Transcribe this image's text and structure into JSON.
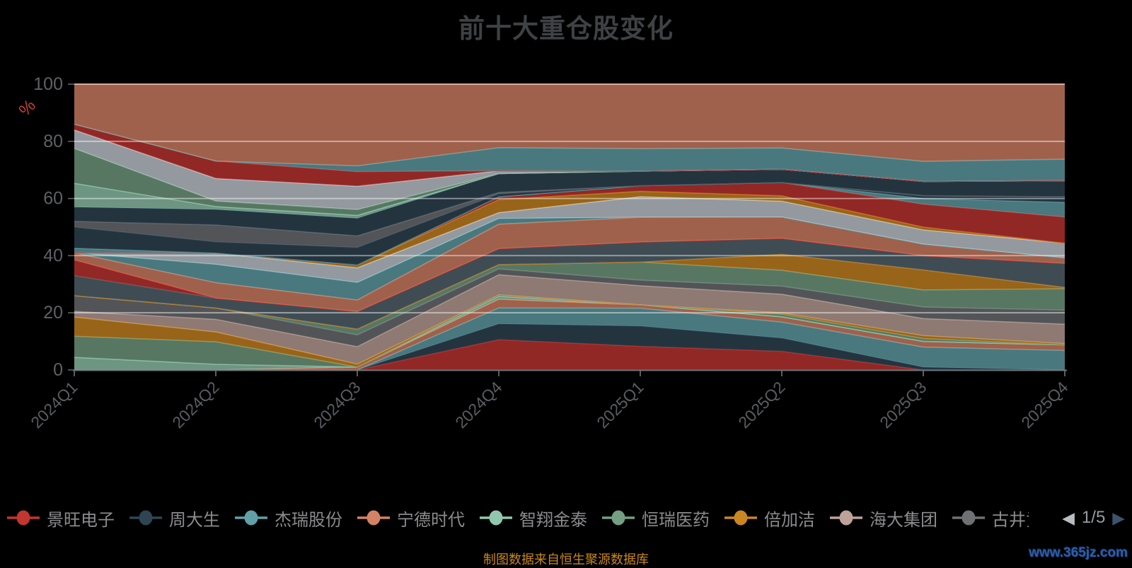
{
  "header": {
    "title": "前十大重仓股变化"
  },
  "footer": {
    "source_note": "制图数据来自恒生聚源数据库",
    "watermark": "www.365jz.com",
    "source_note_color": "#c9871c",
    "watermark_color": "#2a5fae"
  },
  "legend": {
    "items": [
      {
        "label": "景旺电子",
        "color": "#c23531"
      },
      {
        "label": "周大生",
        "color": "#2f4554"
      },
      {
        "label": "杰瑞股份",
        "color": "#61a0a8"
      },
      {
        "label": "宁德时代",
        "color": "#d48265"
      },
      {
        "label": "智翔金泰",
        "color": "#91c7ae"
      },
      {
        "label": "恒瑞医药",
        "color": "#749f83"
      },
      {
        "label": "倍加洁",
        "color": "#ca8622"
      },
      {
        "label": "海大集团",
        "color": "#bda29a"
      },
      {
        "label": "古井贡",
        "color": "#6e7074",
        "truncated": true
      }
    ],
    "pager": {
      "prev": "◀",
      "text": "1/5",
      "next": "▶"
    }
  },
  "chart_data": {
    "type": "area",
    "stacked": true,
    "normalized_percent": true,
    "title": "前十大重仓股变化",
    "xlabel": "",
    "ylabel": "%",
    "ylabel_color": "#c84038",
    "ylim": [
      0,
      100
    ],
    "yticks": [
      0,
      20,
      40,
      60,
      80,
      100
    ],
    "grid_on": true,
    "gridline_color": "rgba(255,255,255,0.5)",
    "area_opacity": 0.75,
    "legend_position": "bottom",
    "legend_page": "1/5",
    "palette": [
      "#c23531",
      "#2f4554",
      "#61a0a8",
      "#d48265",
      "#91c7ae",
      "#749f83",
      "#ca8622",
      "#bda29a",
      "#6e7074",
      "#546570",
      "#c4ccd3"
    ],
    "categories": [
      "2024Q1",
      "2024Q2",
      "2024Q3",
      "2024Q4",
      "2025Q1",
      "2025Q2",
      "2025Q3",
      "2025Q4"
    ],
    "series": [
      {
        "name": "景旺电子",
        "color": "#c23531",
        "values": [
          0,
          0,
          0,
          10.5,
          8.6,
          7,
          0,
          0
        ]
      },
      {
        "name": "周大生",
        "color": "#2f4554",
        "values": [
          0,
          0,
          0,
          5.5,
          7.4,
          5,
          1,
          0
        ]
      },
      {
        "name": "杰瑞股份",
        "color": "#61a0a8",
        "values": [
          0,
          0,
          0,
          5.5,
          6.5,
          6,
          7,
          7
        ]
      },
      {
        "name": "宁德时代",
        "color": "#d48265",
        "values": [
          0,
          0,
          1,
          3,
          1.2,
          2,
          2,
          2
        ]
      },
      {
        "name": "智翔金泰",
        "color": "#91c7ae",
        "values": [
          4.4,
          2,
          0,
          1,
          0,
          0,
          0,
          0
        ]
      },
      {
        "name": "恒瑞医药",
        "color": "#749f83",
        "values": [
          7.4,
          8,
          0,
          0.5,
          0,
          1,
          1,
          0
        ]
      },
      {
        "name": "倍加洁",
        "color": "#ca8622",
        "values": [
          6.7,
          3.5,
          1,
          0,
          0,
          0.5,
          1,
          0.5
        ]
      },
      {
        "name": "海大集团",
        "color": "#bda29a",
        "values": [
          2,
          4.5,
          6,
          7,
          7,
          7,
          6,
          7
        ]
      },
      {
        "name": "古井贡",
        "color": "#6e7074",
        "values": [
          5.5,
          4,
          4,
          2,
          2,
          3,
          4,
          5
        ]
      },
      {
        "name": "",
        "color": "#749f83",
        "values": [
          0,
          0,
          2,
          1.5,
          6.6,
          6,
          6,
          7.7
        ]
      },
      {
        "name": "",
        "color": "#ca8622",
        "values": [
          0,
          0,
          0,
          0,
          0,
          6,
          7,
          0.5
        ]
      },
      {
        "name": "",
        "color": "#546570",
        "values": [
          7,
          3.5,
          6,
          5.5,
          7.3,
          6,
          5,
          8.6
        ]
      },
      {
        "name": "",
        "color": "#c23531",
        "values": [
          5.5,
          0,
          0,
          0,
          0,
          0,
          0,
          0
        ]
      },
      {
        "name": "",
        "color": "#d48265",
        "values": [
          2.5,
          5.5,
          4,
          8.5,
          9,
          8,
          4,
          2
        ]
      },
      {
        "name": "",
        "color": "#61a0a8",
        "values": [
          0,
          6.5,
          6,
          2,
          0,
          0,
          0,
          0
        ]
      },
      {
        "name": "",
        "color": "#c4ccd3",
        "values": [
          0,
          4,
          5,
          2,
          7.5,
          6,
          5,
          5.3
        ]
      },
      {
        "name": "",
        "color": "#ca8622",
        "values": [
          0,
          0,
          1,
          4.5,
          2,
          2,
          1,
          0
        ]
      },
      {
        "name": "",
        "color": "#c23531",
        "values": [
          0,
          0,
          0,
          1,
          2,
          5,
          8,
          9.4
        ]
      },
      {
        "name": "",
        "color": "#61a0a8",
        "values": [
          1.6,
          0,
          0,
          0,
          0,
          0,
          2,
          5.3
        ]
      },
      {
        "name": "",
        "color": "#2f4554",
        "values": [
          7.4,
          4,
          6,
          1,
          0,
          0,
          1,
          2
        ]
      },
      {
        "name": "",
        "color": "#6e7074",
        "values": [
          2,
          6,
          4,
          0.5,
          0,
          0,
          0,
          0
        ]
      },
      {
        "name": "",
        "color": "#2f4554",
        "values": [
          5,
          5.5,
          6,
          6.5,
          5.3,
          5,
          5,
          5.8
        ]
      },
      {
        "name": "",
        "color": "#91c7ae",
        "values": [
          8.3,
          1,
          1,
          0,
          0,
          0,
          0,
          0
        ]
      },
      {
        "name": "",
        "color": "#749f83",
        "values": [
          12.2,
          2,
          2,
          0,
          0,
          0,
          0,
          0
        ]
      },
      {
        "name": "",
        "color": "#c4ccd3",
        "values": [
          6.5,
          8,
          8,
          1,
          0,
          0,
          0,
          0
        ]
      },
      {
        "name": "",
        "color": "#c23531",
        "values": [
          2,
          6.2,
          5,
          0,
          0,
          0,
          0,
          0
        ]
      },
      {
        "name": "",
        "color": "#61a0a8",
        "values": [
          0,
          0,
          2,
          8,
          8.2,
          8,
          7,
          7.7
        ]
      },
      {
        "name": "",
        "color": "#d48265",
        "values": [
          14,
          27.3,
          28,
          22,
          23.5,
          24,
          27,
          27
        ]
      }
    ]
  }
}
